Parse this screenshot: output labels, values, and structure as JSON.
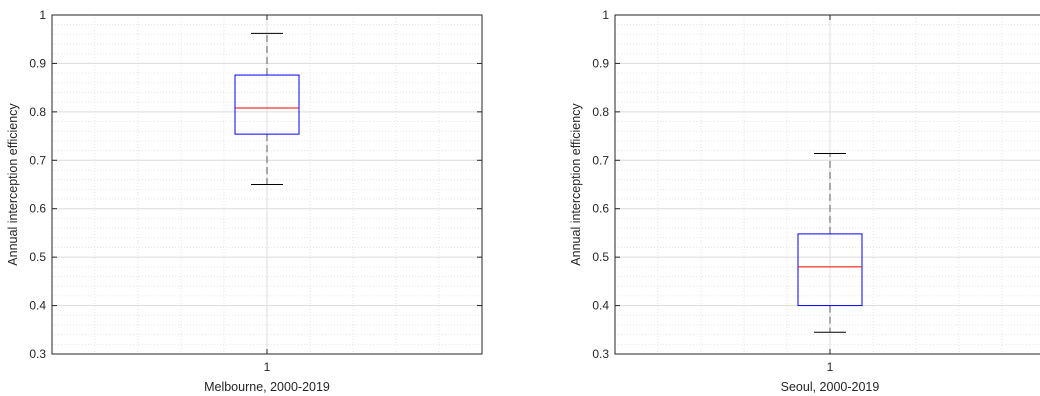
{
  "chart_data": [
    {
      "type": "box",
      "xlabel": "Melbourne, 2000-2019",
      "ylabel": "Annual interception efficiency",
      "ylim": [
        0.3,
        1.0
      ],
      "yticks": [
        "0.3",
        "0.4",
        "0.5",
        "0.6",
        "0.7",
        "0.8",
        "0.9",
        "1"
      ],
      "categories": [
        "1"
      ],
      "grid": true,
      "box": {
        "whisker_low": 0.65,
        "q1": 0.754,
        "median": 0.808,
        "q3": 0.876,
        "whisker_high": 0.962
      }
    },
    {
      "type": "box",
      "xlabel": "Seoul, 2000-2019",
      "ylabel": "Annual interception efficiency",
      "ylim": [
        0.3,
        1.0
      ],
      "yticks": [
        "0.3",
        "0.4",
        "0.5",
        "0.6",
        "0.7",
        "0.8",
        "0.9",
        "1"
      ],
      "categories": [
        "1"
      ],
      "grid": true,
      "box": {
        "whisker_low": 0.345,
        "q1": 0.4,
        "median": 0.48,
        "q3": 0.548,
        "whisker_high": 0.714
      }
    }
  ],
  "colors": {
    "box": "#0000ff",
    "median": "#ff0000",
    "whisker": "#000000",
    "grid": "#dcdcdc",
    "axis": "#262626"
  }
}
